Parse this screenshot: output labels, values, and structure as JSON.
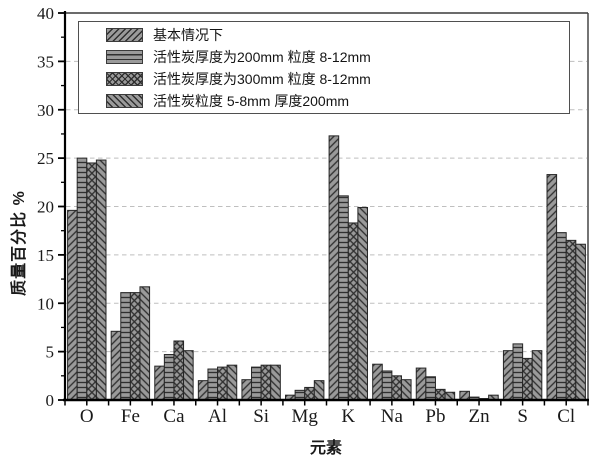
{
  "chart_data": {
    "type": "bar",
    "title": "",
    "xlabel": "元素",
    "ylabel": "质量百分比 %",
    "ylim": [
      0,
      40
    ],
    "ytick_step": 5,
    "ytick_minor_step": 2.5,
    "grid": "horizontal dashed lines at multiples of 5",
    "legend_position": "top-left inside plot",
    "categories": [
      "O",
      "Fe",
      "Ca",
      "Al",
      "Si",
      "Mg",
      "K",
      "Na",
      "Pb",
      "Zn",
      "S",
      "Cl"
    ],
    "series": [
      {
        "name": "基本情况下",
        "pattern": "diagonal-forward",
        "values": [
          19.6,
          7.1,
          3.5,
          2.0,
          2.1,
          0.5,
          27.3,
          3.7,
          3.3,
          0.9,
          5.1,
          23.3
        ]
      },
      {
        "name": "活性炭厚度为200mm 粒度 8-12mm",
        "pattern": "horizontal",
        "values": [
          25.0,
          11.1,
          4.7,
          3.2,
          3.4,
          1.0,
          21.1,
          3.0,
          2.4,
          0.3,
          5.8,
          17.3
        ]
      },
      {
        "name": "活性炭厚度为300mm 粒度 8-12mm",
        "pattern": "crosshatch",
        "values": [
          24.5,
          11.1,
          6.1,
          3.4,
          3.6,
          1.3,
          18.3,
          2.5,
          1.1,
          0.15,
          4.3,
          16.5
        ]
      },
      {
        "name": "活性炭粒度 5-8mm 厚度200mm",
        "pattern": "diagonal-back",
        "values": [
          24.8,
          11.7,
          5.1,
          3.6,
          3.6,
          2.0,
          19.9,
          2.1,
          0.8,
          0.5,
          5.1,
          16.1
        ]
      }
    ]
  },
  "colors": {
    "bar_fill": "#9a9a9a",
    "hatch": "#2f2f2f",
    "bar_border": "#262626",
    "grid": "#bfbfbf",
    "axis": "#000000",
    "frame": "#3a3a3a",
    "tick_label": "#1a1a1a"
  }
}
